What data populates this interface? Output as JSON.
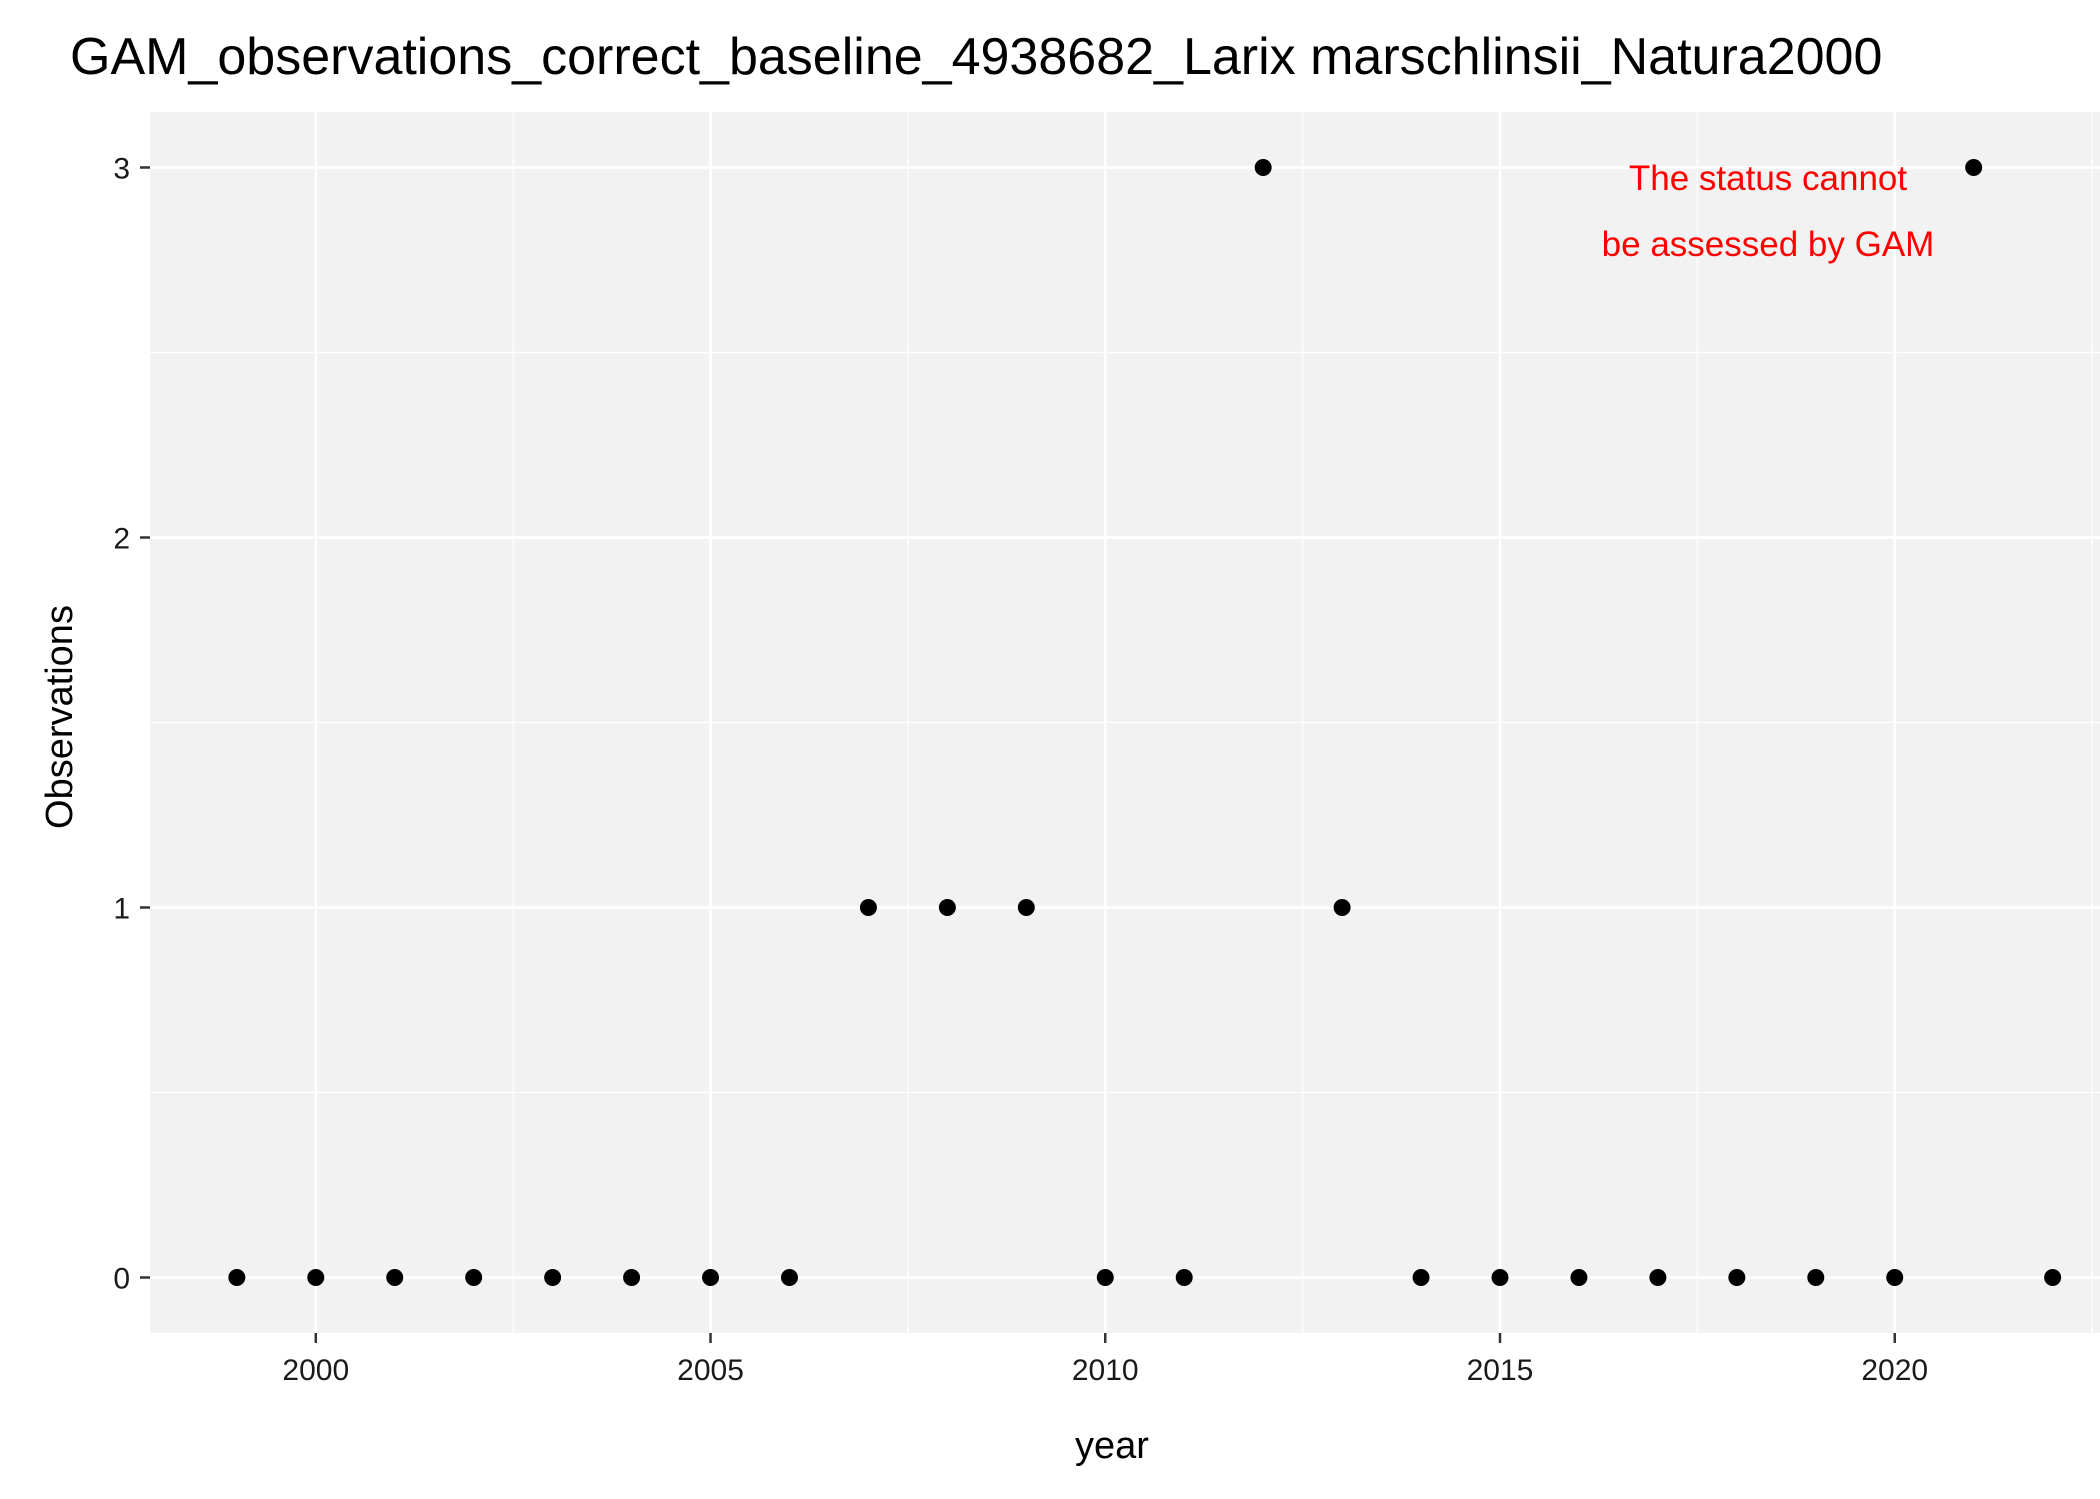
{
  "chart_data": {
    "type": "scatter",
    "title": "GAM_observations_correct_baseline_4938682_Larix marschlinsii_Natura2000",
    "xlabel": "year",
    "ylabel": "Observations",
    "xlim": [
      1997.9,
      2022.6
    ],
    "ylim": [
      -0.15,
      3.15
    ],
    "xticks": [
      2000,
      2005,
      2010,
      2015,
      2020
    ],
    "yticks": [
      0,
      1,
      2,
      3
    ],
    "xtick_labels": [
      "2000",
      "2005",
      "2010",
      "2015",
      "2020"
    ],
    "ytick_labels": [
      "0",
      "1",
      "2",
      "3"
    ],
    "grid": true,
    "points": [
      {
        "x": 1999,
        "y": 0
      },
      {
        "x": 2000,
        "y": 0
      },
      {
        "x": 2001,
        "y": 0
      },
      {
        "x": 2002,
        "y": 0
      },
      {
        "x": 2003,
        "y": 0
      },
      {
        "x": 2004,
        "y": 0
      },
      {
        "x": 2005,
        "y": 0
      },
      {
        "x": 2006,
        "y": 0
      },
      {
        "x": 2007,
        "y": 1
      },
      {
        "x": 2008,
        "y": 1
      },
      {
        "x": 2009,
        "y": 1
      },
      {
        "x": 2010,
        "y": 0
      },
      {
        "x": 2011,
        "y": 0
      },
      {
        "x": 2012,
        "y": 3
      },
      {
        "x": 2013,
        "y": 1
      },
      {
        "x": 2014,
        "y": 0
      },
      {
        "x": 2015,
        "y": 0
      },
      {
        "x": 2016,
        "y": 0
      },
      {
        "x": 2017,
        "y": 0
      },
      {
        "x": 2018,
        "y": 0
      },
      {
        "x": 2019,
        "y": 0
      },
      {
        "x": 2020,
        "y": 0
      },
      {
        "x": 2021,
        "y": 3
      },
      {
        "x": 2022,
        "y": 0
      }
    ],
    "annotation": {
      "lines": [
        "The status cannot",
        "be assessed by GAM"
      ],
      "color": "#ff0000"
    },
    "colors": {
      "panel_background": "#f2f2f2",
      "grid": "#ffffff",
      "points": "#000000"
    }
  }
}
